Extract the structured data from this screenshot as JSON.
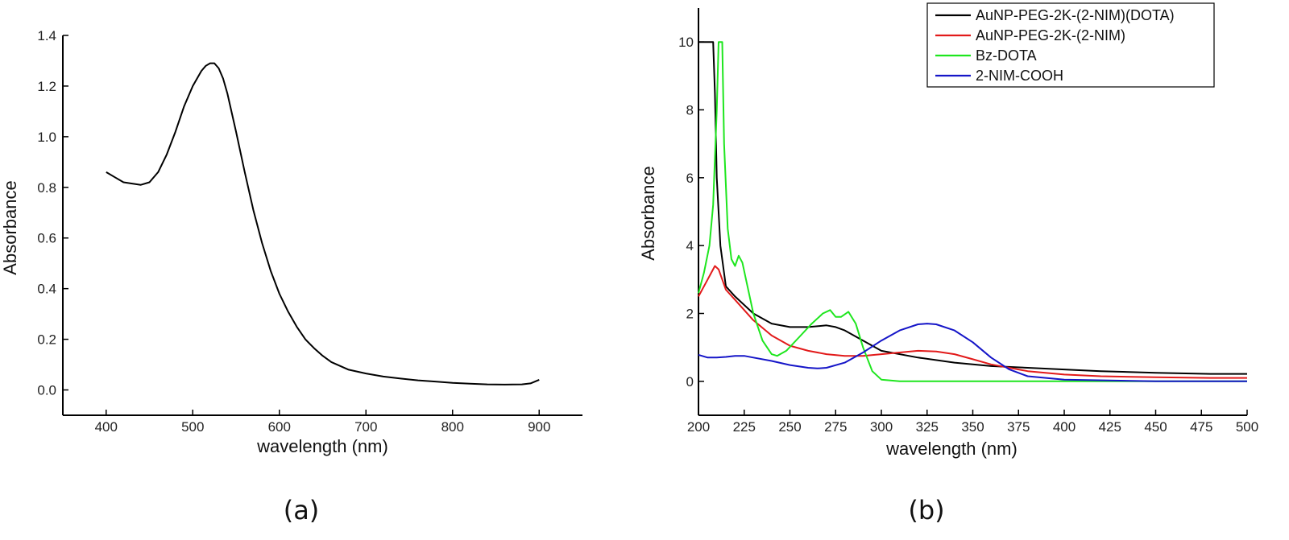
{
  "chart_data": [
    {
      "type": "line",
      "panel_label": "(a)",
      "xlabel": "wavelength (nm)",
      "ylabel": "Absorbance",
      "xlim": [
        350,
        950
      ],
      "ylim": [
        -0.1,
        1.4
      ],
      "xticks": [
        400,
        500,
        600,
        700,
        800,
        900
      ],
      "yticks": [
        "0.0",
        "0.2",
        "0.4",
        "0.6",
        "0.8",
        "1.0",
        "1.2",
        "1.4"
      ],
      "grid": false,
      "series": [
        {
          "color": "#000000",
          "x": [
            400,
            410,
            420,
            430,
            440,
            450,
            460,
            470,
            480,
            490,
            500,
            510,
            515,
            520,
            525,
            530,
            535,
            540,
            550,
            560,
            570,
            580,
            590,
            600,
            610,
            620,
            630,
            640,
            650,
            660,
            680,
            700,
            720,
            740,
            760,
            780,
            800,
            820,
            840,
            860,
            880,
            890,
            900
          ],
          "y": [
            0.86,
            0.84,
            0.82,
            0.815,
            0.81,
            0.82,
            0.86,
            0.93,
            1.02,
            1.12,
            1.2,
            1.26,
            1.28,
            1.29,
            1.29,
            1.27,
            1.23,
            1.17,
            1.02,
            0.86,
            0.71,
            0.58,
            0.47,
            0.38,
            0.31,
            0.25,
            0.2,
            0.165,
            0.135,
            0.11,
            0.08,
            0.065,
            0.053,
            0.045,
            0.038,
            0.033,
            0.028,
            0.025,
            0.022,
            0.021,
            0.022,
            0.026,
            0.04
          ]
        }
      ]
    },
    {
      "type": "line",
      "panel_label": "(b)",
      "xlabel": "wavelength (nm)",
      "ylabel": "Absorbance",
      "xlim": [
        200,
        500
      ],
      "ylim": [
        -1,
        11
      ],
      "xticks": [
        200,
        225,
        250,
        275,
        300,
        325,
        350,
        375,
        400,
        425,
        450,
        475,
        500
      ],
      "yticks": [
        "0",
        "2",
        "4",
        "6",
        "8",
        "10"
      ],
      "grid": false,
      "legend": "top-right",
      "series": [
        {
          "name": "AuNP-PEG-2K-(2-NIM)(DOTA)",
          "color": "#000000",
          "x": [
            200,
            206,
            208,
            209,
            210,
            212,
            215,
            220,
            230,
            240,
            250,
            260,
            270,
            275,
            280,
            290,
            300,
            320,
            340,
            360,
            380,
            400,
            420,
            450,
            480,
            500
          ],
          "y": [
            10,
            10,
            10,
            8.5,
            6,
            4,
            2.8,
            2.5,
            2.0,
            1.7,
            1.6,
            1.6,
            1.65,
            1.6,
            1.5,
            1.2,
            0.9,
            0.7,
            0.55,
            0.45,
            0.4,
            0.35,
            0.3,
            0.25,
            0.22,
            0.22
          ]
        },
        {
          "name": "AuNP-PEG-2K-(2-NIM)",
          "color": "#e21a1a",
          "x": [
            200,
            203,
            205,
            207,
            209,
            211,
            213,
            215,
            220,
            225,
            230,
            240,
            250,
            260,
            270,
            280,
            290,
            300,
            310,
            320,
            330,
            340,
            350,
            360,
            380,
            400,
            420,
            450,
            480,
            500
          ],
          "y": [
            2.5,
            2.8,
            3.0,
            3.2,
            3.4,
            3.3,
            3.0,
            2.7,
            2.4,
            2.1,
            1.8,
            1.35,
            1.05,
            0.9,
            0.8,
            0.75,
            0.75,
            0.8,
            0.85,
            0.9,
            0.88,
            0.8,
            0.65,
            0.5,
            0.3,
            0.2,
            0.15,
            0.12,
            0.1,
            0.1
          ]
        },
        {
          "name": "Bz-DOTA",
          "color": "#1ee61e",
          "x": [
            200,
            203,
            206,
            208,
            210,
            211,
            212,
            213,
            214,
            216,
            218,
            220,
            222,
            224,
            226,
            230,
            235,
            240,
            243,
            248,
            255,
            262,
            268,
            272,
            275,
            278,
            282,
            286,
            290,
            295,
            300,
            310,
            330,
            360,
            400,
            450,
            500
          ],
          "y": [
            2.6,
            3.2,
            4.0,
            5.2,
            8.0,
            10,
            10,
            10,
            7.0,
            4.5,
            3.6,
            3.4,
            3.7,
            3.5,
            3.0,
            2.0,
            1.2,
            0.8,
            0.75,
            0.9,
            1.3,
            1.7,
            2.0,
            2.1,
            1.9,
            1.9,
            2.05,
            1.7,
            1.0,
            0.3,
            0.05,
            0.0,
            0.0,
            0.0,
            0.0,
            0.0,
            0.0
          ]
        },
        {
          "name": "2-NIM-COOH",
          "color": "#1515c8",
          "x": [
            200,
            205,
            210,
            215,
            220,
            225,
            230,
            240,
            250,
            260,
            265,
            270,
            280,
            290,
            300,
            310,
            320,
            325,
            330,
            340,
            350,
            360,
            370,
            380,
            400,
            450,
            500
          ],
          "y": [
            0.78,
            0.7,
            0.7,
            0.72,
            0.75,
            0.75,
            0.7,
            0.6,
            0.48,
            0.4,
            0.38,
            0.4,
            0.55,
            0.85,
            1.2,
            1.5,
            1.68,
            1.7,
            1.68,
            1.5,
            1.15,
            0.7,
            0.35,
            0.15,
            0.05,
            0.0,
            0.0
          ]
        }
      ]
    }
  ]
}
